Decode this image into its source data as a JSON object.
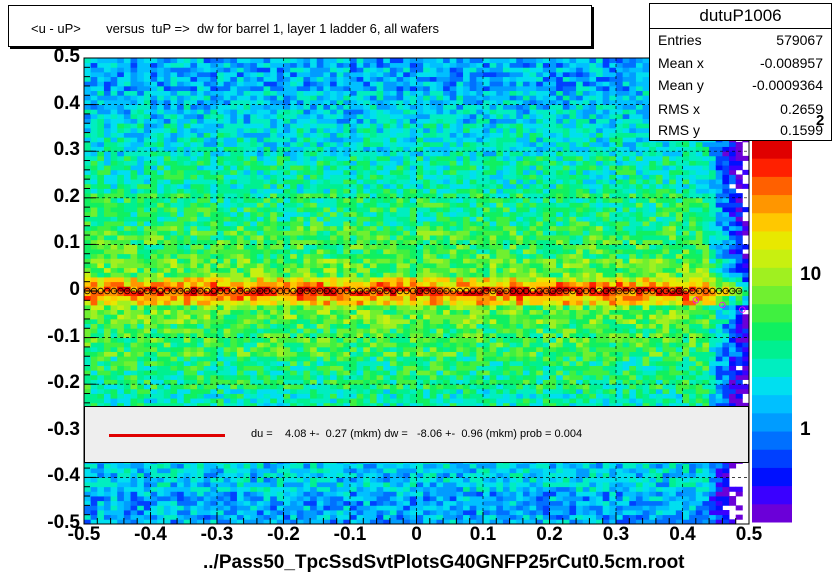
{
  "title": "<u - uP>       versus  tuP =>  dw for barrel 1, layer 1 ladder 6, all wafers",
  "stats": {
    "name": "dutuP1006",
    "rows": [
      {
        "key": "Entries",
        "value": "579067"
      },
      {
        "key": "Mean x",
        "value": "-0.008957"
      },
      {
        "key": "Mean y",
        "value": "-0.0009364"
      },
      {
        "key": "RMS x",
        "value": "0.2659"
      },
      {
        "key": "RMS y",
        "value": "0.1599"
      }
    ]
  },
  "fit_legend": "du =    4.08 +-  0.27 (mkm) dw =   -8.06 +-  0.96 (mkm) prob = 0.004",
  "footer": "../Pass50_TpcSsdSvtPlotsG40GNFP25rCut0.5cm.root",
  "colors": {
    "fit_line": "#e00000",
    "profile_points": "#000000",
    "profile_alt": "#ff00ff",
    "grid": "#000000"
  },
  "chart_data": {
    "type": "heatmap",
    "title": "<u - uP>       versus  tuP =>  dw for barrel 1, layer 1 ladder 6, all wafers",
    "xlim": [
      -0.5,
      0.5
    ],
    "ylim": [
      -0.5,
      0.5
    ],
    "x_ticks": [
      "-0.5",
      "-0.4",
      "-0.3",
      "-0.2",
      "-0.1",
      "0",
      "0.1",
      "0.2",
      "0.3",
      "0.4",
      "0.5"
    ],
    "y_ticks": [
      "-0.5",
      "-0.4",
      "-0.3",
      "-0.2",
      "-0.1",
      "0",
      "0.1",
      "0.2",
      "0.3",
      "0.4",
      "0.5"
    ],
    "z_scale": "log",
    "z_ticks": [
      "1",
      "10",
      "10^2"
    ],
    "grid": true,
    "band_center_y": 0.0,
    "band_halfwidth_y": 0.03,
    "profile_y": 0.0,
    "profile_tail": [
      {
        "x": 0.42,
        "y": -0.02
      },
      {
        "x": 0.46,
        "y": -0.03
      },
      {
        "x": 0.49,
        "y": -0.04
      }
    ]
  }
}
